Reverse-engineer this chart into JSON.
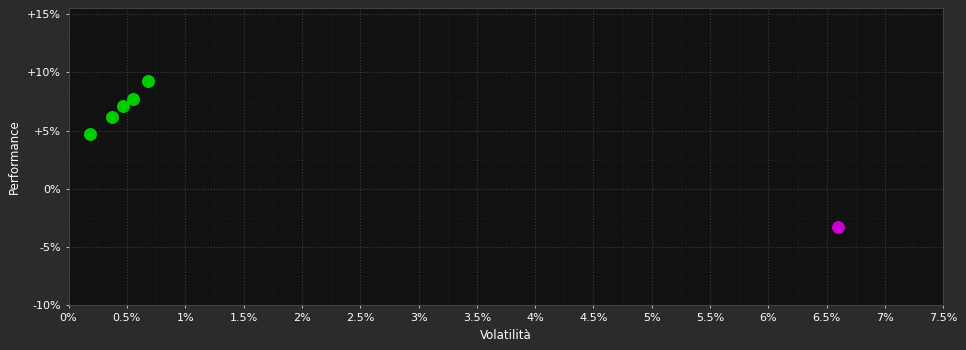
{
  "background_color": "#2b2b2b",
  "plot_bg_color": "#111111",
  "grid_color": "#3d3d3d",
  "text_color": "#ffffff",
  "xlabel": "Volatilità",
  "ylabel": "Performance",
  "xlim": [
    0,
    0.075
  ],
  "ylim": [
    -0.1,
    0.155
  ],
  "xticks": [
    0.0,
    0.005,
    0.01,
    0.015,
    0.02,
    0.025,
    0.03,
    0.035,
    0.04,
    0.045,
    0.05,
    0.055,
    0.06,
    0.065,
    0.07,
    0.075
  ],
  "yticks": [
    -0.1,
    -0.05,
    0.0,
    0.05,
    0.1,
    0.15
  ],
  "ytick_labels": [
    "-10%",
    "-5%",
    "0%",
    "+5%",
    "+10%",
    "+15%"
  ],
  "xtick_labels": [
    "0%",
    "0.5%",
    "1%",
    "1.5%",
    "2%",
    "2.5%",
    "3%",
    "3.5%",
    "4%",
    "4.5%",
    "5%",
    "5.5%",
    "6%",
    "6.5%",
    "7%",
    "7.5%"
  ],
  "green_points": [
    [
      0.0018,
      0.047
    ],
    [
      0.0037,
      0.062
    ],
    [
      0.0047,
      0.071
    ],
    [
      0.0055,
      0.077
    ],
    [
      0.0068,
      0.093
    ]
  ],
  "magenta_points": [
    [
      0.066,
      -0.033
    ]
  ],
  "green_color": "#00cc00",
  "magenta_color": "#cc00cc",
  "marker_size": 5,
  "grid_minor_color": "#252525",
  "spine_color": "#444444",
  "label_fontsize": 8.5,
  "tick_fontsize": 8
}
